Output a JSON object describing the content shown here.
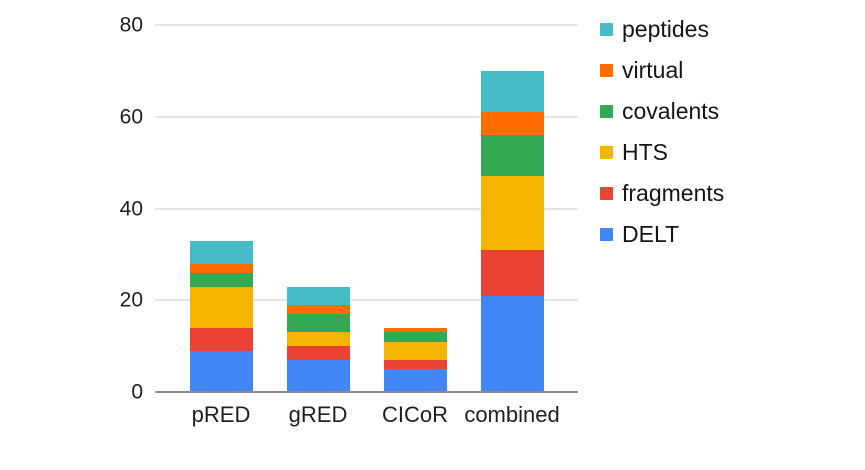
{
  "chart_data": {
    "type": "bar",
    "stacked": true,
    "title": "",
    "xlabel": "",
    "ylabel": "",
    "categories": [
      "pRED",
      "gRED",
      "CICoR",
      "combined"
    ],
    "series": [
      {
        "name": "DELT",
        "color": "#4285F4",
        "values": [
          9,
          7,
          5,
          21
        ]
      },
      {
        "name": "fragments",
        "color": "#EA4335",
        "values": [
          5,
          3,
          2,
          10
        ]
      },
      {
        "name": "HTS",
        "color": "#F4B400",
        "values": [
          9,
          3,
          4,
          16
        ]
      },
      {
        "name": "covalents",
        "color": "#34A853",
        "values": [
          3,
          4,
          2,
          9
        ]
      },
      {
        "name": "virtual",
        "color": "#FF6D01",
        "values": [
          2,
          2,
          1,
          5
        ]
      },
      {
        "name": "peptides",
        "color": "#46BDC6",
        "values": [
          5,
          4,
          0,
          9
        ]
      }
    ],
    "totals": [
      33,
      23,
      14,
      70
    ],
    "ylim": [
      0,
      80
    ],
    "yticks": [
      0,
      20,
      40,
      60,
      80
    ],
    "grid": true,
    "legend_position": "top-right",
    "legend_order": [
      "peptides",
      "virtual",
      "covalents",
      "HTS",
      "fragments",
      "DELT"
    ]
  },
  "style_colors": {
    "background": "#ffffff",
    "gridline": "#e4e4e4",
    "baseline": "#8a8a8a",
    "axis_text": "#1f1f1f"
  }
}
